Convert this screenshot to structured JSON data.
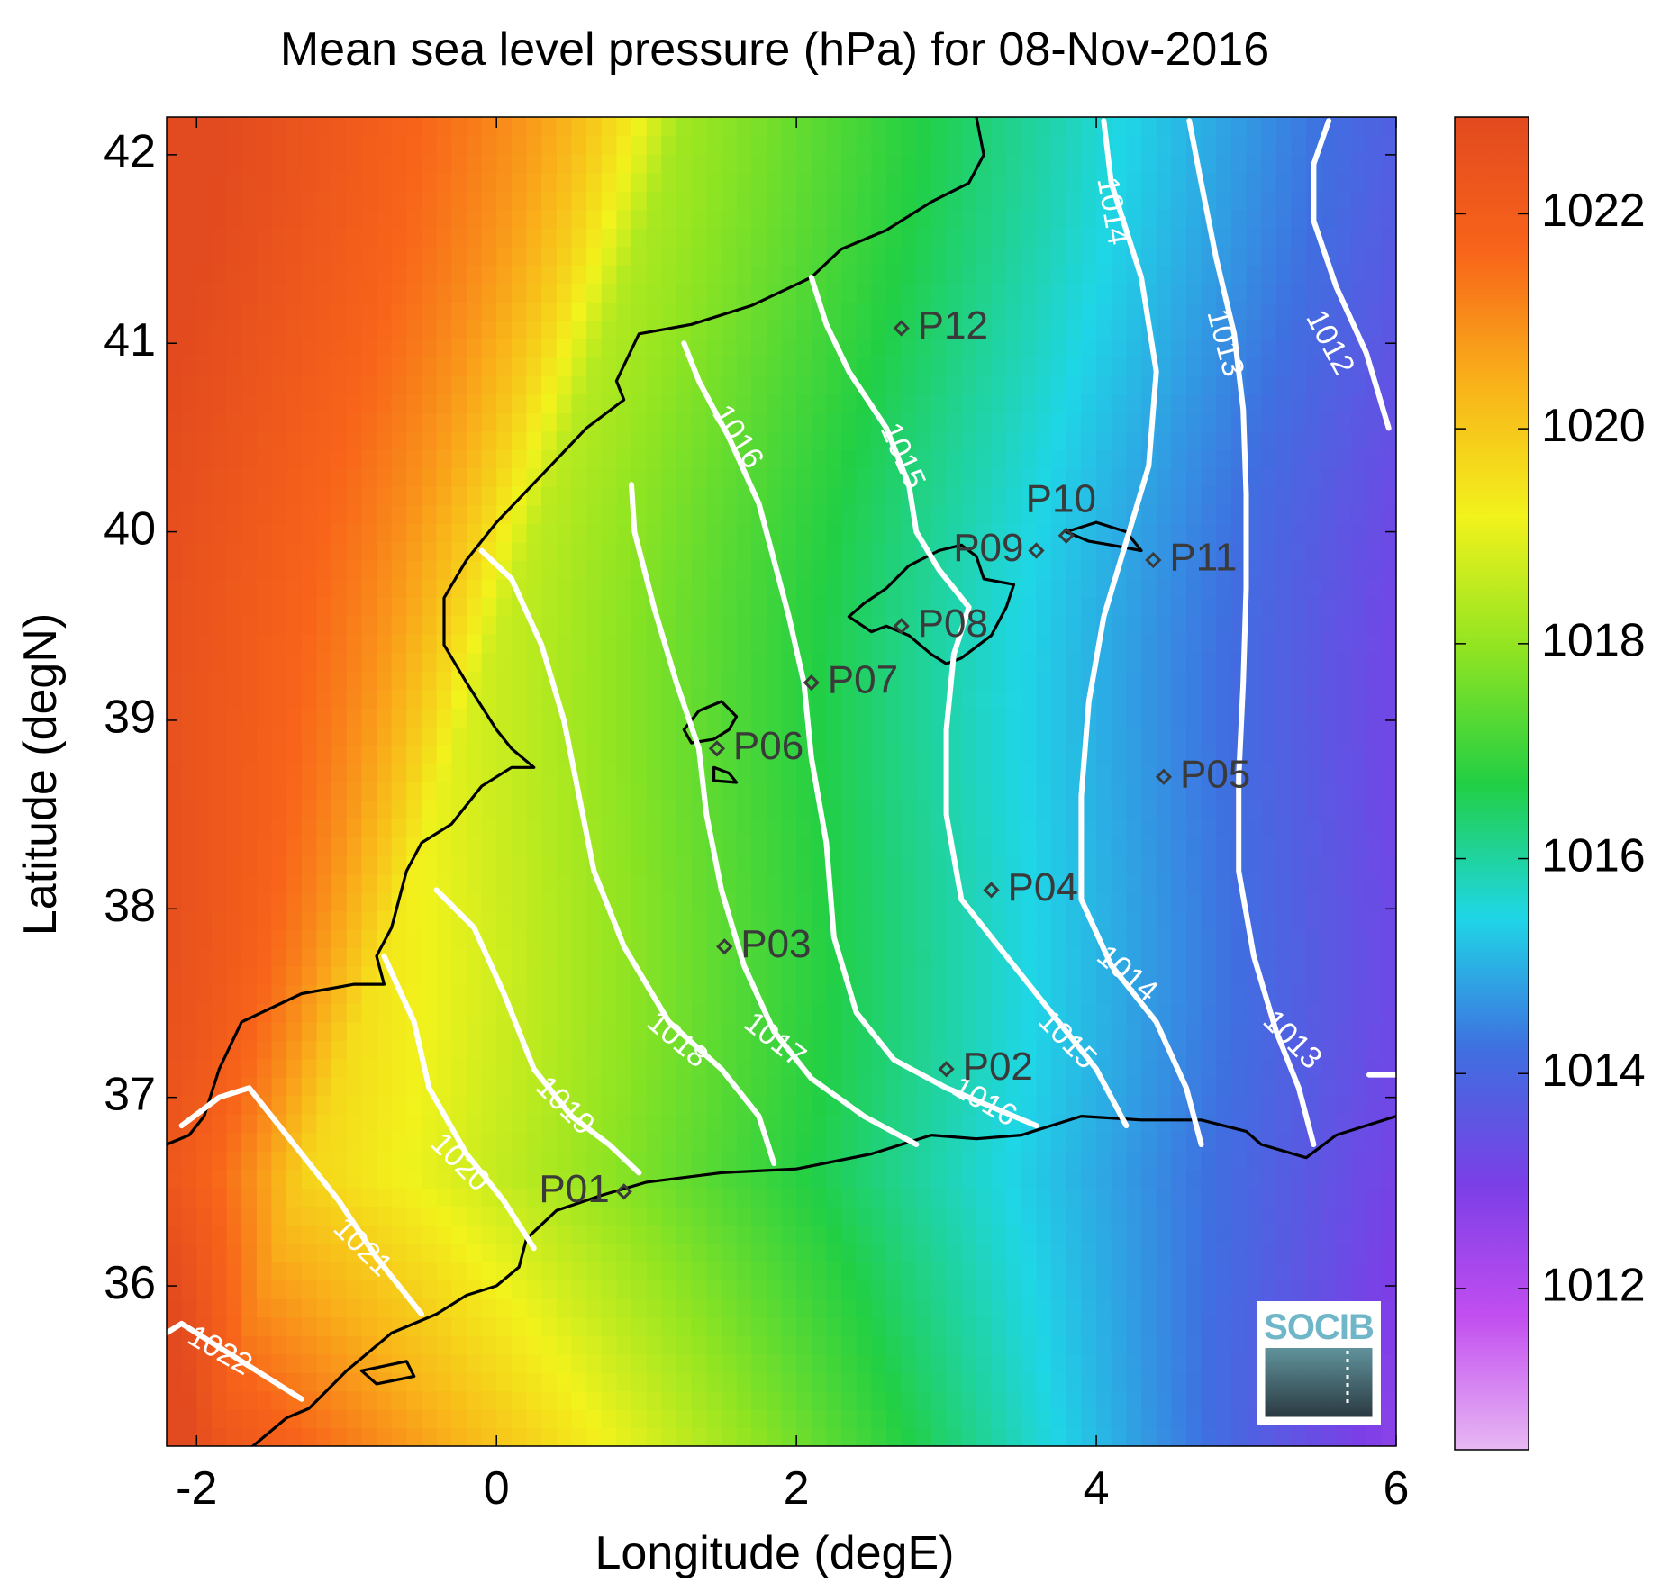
{
  "chart_data": {
    "type": "heatmap",
    "title": "Mean sea level pressure (hPa) for 08-Nov-2016",
    "xlabel": "Longitude (degE)",
    "ylabel": "Latitude (degN)",
    "xlim": [
      -2.2,
      6.0
    ],
    "ylim": [
      35.15,
      42.2
    ],
    "xticks": [
      -2,
      0,
      2,
      4,
      6
    ],
    "yticks": [
      36,
      37,
      38,
      39,
      40,
      41,
      42
    ],
    "colorbar": {
      "range": [
        1010.5,
        1022.9
      ],
      "ticks": [
        1012,
        1014,
        1016,
        1018,
        1020,
        1022
      ],
      "colors": [
        "#e8b8f3",
        "#c24ef0",
        "#7a3fe6",
        "#3f6fe0",
        "#1fd6e6",
        "#22cf44",
        "#8fe422",
        "#f2f21c",
        "#f9b21a",
        "#f8641a",
        "#e24a1f"
      ]
    },
    "contours": [
      {
        "level": "1012",
        "points": [
          [
            5.95,
            40.55
          ],
          [
            5.8,
            40.95
          ],
          [
            5.6,
            41.3
          ],
          [
            5.45,
            41.65
          ],
          [
            5.45,
            41.95
          ],
          [
            5.55,
            42.18
          ]
        ]
      },
      {
        "level": "1013",
        "points": [
          [
            5.45,
            36.75
          ],
          [
            5.35,
            37.05
          ],
          [
            5.2,
            37.35
          ],
          [
            5.05,
            37.75
          ],
          [
            4.95,
            38.2
          ],
          [
            4.95,
            38.7
          ],
          [
            4.98,
            39.2
          ],
          [
            5.0,
            39.7
          ],
          [
            5.0,
            40.2
          ],
          [
            4.98,
            40.65
          ],
          [
            4.92,
            41.05
          ],
          [
            4.8,
            41.45
          ],
          [
            4.7,
            41.85
          ],
          [
            4.62,
            42.18
          ]
        ]
      },
      {
        "level": "1013",
        "points": [
          [
            5.82,
            37.12
          ],
          [
            6.0,
            37.12
          ]
        ]
      },
      {
        "level": "1014",
        "points": [
          [
            4.7,
            36.75
          ],
          [
            4.6,
            37.05
          ],
          [
            4.4,
            37.4
          ],
          [
            4.1,
            37.7
          ],
          [
            3.9,
            38.05
          ],
          [
            3.9,
            38.6
          ],
          [
            3.95,
            39.1
          ],
          [
            4.05,
            39.55
          ],
          [
            4.2,
            39.95
          ],
          [
            4.35,
            40.35
          ],
          [
            4.4,
            40.85
          ],
          [
            4.3,
            41.35
          ],
          [
            4.1,
            41.85
          ],
          [
            4.05,
            42.18
          ]
        ]
      },
      {
        "level": "1015",
        "points": [
          [
            4.2,
            36.85
          ],
          [
            4.0,
            37.15
          ],
          [
            3.7,
            37.45
          ],
          [
            3.4,
            37.75
          ],
          [
            3.1,
            38.05
          ],
          [
            3.0,
            38.5
          ],
          [
            3.0,
            38.95
          ],
          [
            3.05,
            39.35
          ],
          [
            3.15,
            39.6
          ],
          [
            2.95,
            39.8
          ],
          [
            2.8,
            40.0
          ],
          [
            2.75,
            40.25
          ],
          [
            2.6,
            40.55
          ],
          [
            2.35,
            40.85
          ],
          [
            2.2,
            41.1
          ],
          [
            2.1,
            41.35
          ]
        ]
      },
      {
        "level": "1016",
        "points": [
          [
            3.6,
            36.85
          ],
          [
            3.3,
            36.95
          ],
          [
            3.0,
            37.05
          ],
          [
            2.65,
            37.2
          ],
          [
            2.4,
            37.45
          ],
          [
            2.25,
            37.85
          ],
          [
            2.2,
            38.35
          ],
          [
            2.1,
            38.8
          ],
          [
            2.05,
            39.2
          ],
          [
            1.95,
            39.55
          ],
          [
            1.85,
            39.85
          ],
          [
            1.75,
            40.15
          ],
          [
            1.55,
            40.5
          ],
          [
            1.35,
            40.8
          ],
          [
            1.25,
            41.0
          ]
        ]
      },
      {
        "level": "1017",
        "points": [
          [
            2.8,
            36.75
          ],
          [
            2.45,
            36.9
          ],
          [
            2.1,
            37.1
          ],
          [
            1.85,
            37.35
          ],
          [
            1.65,
            37.7
          ],
          [
            1.5,
            38.1
          ],
          [
            1.4,
            38.5
          ],
          [
            1.35,
            38.85
          ],
          [
            1.2,
            39.2
          ],
          [
            1.05,
            39.6
          ],
          [
            0.92,
            40.0
          ],
          [
            0.9,
            40.25
          ]
        ]
      },
      {
        "level": "1018",
        "points": [
          [
            1.85,
            36.65
          ],
          [
            1.75,
            36.9
          ],
          [
            1.5,
            37.15
          ],
          [
            1.15,
            37.4
          ],
          [
            0.85,
            37.8
          ],
          [
            0.65,
            38.2
          ],
          [
            0.55,
            38.6
          ],
          [
            0.45,
            39.0
          ],
          [
            0.3,
            39.4
          ],
          [
            0.1,
            39.75
          ],
          [
            -0.1,
            39.9
          ]
        ]
      },
      {
        "level": "1019",
        "points": [
          [
            0.95,
            36.6
          ],
          [
            0.75,
            36.75
          ],
          [
            0.5,
            36.9
          ],
          [
            0.25,
            37.15
          ],
          [
            0.05,
            37.55
          ],
          [
            -0.15,
            37.9
          ],
          [
            -0.4,
            38.1
          ]
        ]
      },
      {
        "level": "1020",
        "points": [
          [
            0.25,
            36.2
          ],
          [
            0.05,
            36.45
          ],
          [
            -0.2,
            36.7
          ],
          [
            -0.45,
            37.05
          ],
          [
            -0.55,
            37.4
          ],
          [
            -0.75,
            37.75
          ]
        ]
      },
      {
        "level": "1021",
        "points": [
          [
            -0.5,
            35.85
          ],
          [
            -0.8,
            36.15
          ],
          [
            -1.05,
            36.45
          ],
          [
            -1.35,
            36.75
          ],
          [
            -1.65,
            37.05
          ],
          [
            -1.85,
            37.0
          ],
          [
            -2.1,
            36.85
          ]
        ]
      },
      {
        "level": "1022",
        "points": [
          [
            -1.3,
            35.4
          ],
          [
            -1.6,
            35.55
          ],
          [
            -1.9,
            35.7
          ],
          [
            -2.1,
            35.8
          ],
          [
            -2.2,
            35.75
          ]
        ]
      }
    ],
    "contour_labels": [
      {
        "text": "1012",
        "lon": 5.55,
        "lat": 41.0,
        "angle": 62
      },
      {
        "text": "1013",
        "lon": 4.85,
        "lat": 41.0,
        "angle": 75
      },
      {
        "text": "1014",
        "lon": 4.1,
        "lat": 41.7,
        "angle": 80
      },
      {
        "text": "1015",
        "lon": 2.7,
        "lat": 40.4,
        "angle": 66
      },
      {
        "text": "1016",
        "lon": 1.6,
        "lat": 40.5,
        "angle": 58
      },
      {
        "text": "1017",
        "lon": 1.85,
        "lat": 37.3,
        "angle": 38
      },
      {
        "text": "1018",
        "lon": 1.2,
        "lat": 37.3,
        "angle": 40
      },
      {
        "text": "1019",
        "lon": 0.45,
        "lat": 36.95,
        "angle": 45
      },
      {
        "text": "1020",
        "lon": -0.25,
        "lat": 36.65,
        "angle": 45
      },
      {
        "text": "1021",
        "lon": -0.9,
        "lat": 36.2,
        "angle": 45
      },
      {
        "text": "1022",
        "lon": -1.85,
        "lat": 35.65,
        "angle": 30
      },
      {
        "text": "1013",
        "lon": 5.3,
        "lat": 37.3,
        "angle": 45
      },
      {
        "text": "1014",
        "lon": 4.2,
        "lat": 37.65,
        "angle": 40
      },
      {
        "text": "1015",
        "lon": 3.8,
        "lat": 37.3,
        "angle": 45
      },
      {
        "text": "1016",
        "lon": 3.25,
        "lat": 36.97,
        "angle": 30
      }
    ],
    "stations": [
      {
        "name": "P01",
        "lon": 0.85,
        "lat": 36.5
      },
      {
        "name": "P02",
        "lon": 3.0,
        "lat": 37.15
      },
      {
        "name": "P03",
        "lon": 1.52,
        "lat": 37.8
      },
      {
        "name": "P04",
        "lon": 3.3,
        "lat": 38.1
      },
      {
        "name": "P05",
        "lon": 4.45,
        "lat": 38.7
      },
      {
        "name": "P06",
        "lon": 1.47,
        "lat": 38.85
      },
      {
        "name": "P07",
        "lon": 2.1,
        "lat": 39.2
      },
      {
        "name": "P08",
        "lon": 2.7,
        "lat": 39.5
      },
      {
        "name": "P09",
        "lon": 3.6,
        "lat": 39.9
      },
      {
        "name": "P10",
        "lon": 3.8,
        "lat": 39.98
      },
      {
        "name": "P11",
        "lon": 4.38,
        "lat": 39.85
      },
      {
        "name": "P12",
        "lon": 2.7,
        "lat": 41.08
      }
    ],
    "coastlines": [
      {
        "name": "iberia",
        "points": [
          [
            -2.2,
            36.75
          ],
          [
            -2.05,
            36.8
          ],
          [
            -1.95,
            36.9
          ],
          [
            -1.85,
            37.15
          ],
          [
            -1.7,
            37.4
          ],
          [
            -1.3,
            37.55
          ],
          [
            -0.95,
            37.6
          ],
          [
            -0.75,
            37.6
          ],
          [
            -0.8,
            37.75
          ],
          [
            -0.7,
            37.9
          ],
          [
            -0.6,
            38.2
          ],
          [
            -0.5,
            38.35
          ],
          [
            -0.3,
            38.45
          ],
          [
            -0.1,
            38.65
          ],
          [
            0.1,
            38.75
          ],
          [
            0.25,
            38.75
          ],
          [
            0.1,
            38.85
          ],
          [
            0.0,
            38.95
          ],
          [
            -0.2,
            39.2
          ],
          [
            -0.35,
            39.4
          ],
          [
            -0.35,
            39.65
          ],
          [
            -0.2,
            39.85
          ],
          [
            0.0,
            40.05
          ],
          [
            0.3,
            40.3
          ],
          [
            0.6,
            40.55
          ],
          [
            0.85,
            40.7
          ],
          [
            0.8,
            40.8
          ],
          [
            0.95,
            41.05
          ],
          [
            1.3,
            41.1
          ],
          [
            1.7,
            41.2
          ],
          [
            2.1,
            41.35
          ],
          [
            2.3,
            41.5
          ],
          [
            2.6,
            41.6
          ],
          [
            2.9,
            41.75
          ],
          [
            3.15,
            41.85
          ],
          [
            3.25,
            42.0
          ],
          [
            3.2,
            42.2
          ]
        ]
      },
      {
        "name": "africa",
        "points": [
          [
            -1.7,
            35.1
          ],
          [
            -1.4,
            35.3
          ],
          [
            -1.25,
            35.35
          ],
          [
            -1.0,
            35.55
          ],
          [
            -0.7,
            35.75
          ],
          [
            -0.4,
            35.85
          ],
          [
            -0.2,
            35.95
          ],
          [
            0.0,
            36.0
          ],
          [
            0.15,
            36.1
          ],
          [
            0.2,
            36.25
          ],
          [
            0.4,
            36.4
          ],
          [
            0.7,
            36.48
          ],
          [
            1.0,
            36.55
          ],
          [
            1.5,
            36.6
          ],
          [
            2.0,
            36.62
          ],
          [
            2.5,
            36.7
          ],
          [
            2.9,
            36.8
          ],
          [
            3.2,
            36.78
          ],
          [
            3.5,
            36.8
          ],
          [
            3.9,
            36.9
          ],
          [
            4.3,
            36.88
          ],
          [
            4.7,
            36.88
          ],
          [
            5.0,
            36.82
          ],
          [
            5.1,
            36.75
          ],
          [
            5.4,
            36.68
          ],
          [
            5.6,
            36.8
          ],
          [
            6.0,
            36.9
          ]
        ]
      },
      {
        "name": "mallorca",
        "points": [
          [
            2.35,
            39.55
          ],
          [
            2.45,
            39.62
          ],
          [
            2.6,
            39.7
          ],
          [
            2.75,
            39.82
          ],
          [
            2.95,
            39.9
          ],
          [
            3.1,
            39.93
          ],
          [
            3.2,
            39.87
          ],
          [
            3.25,
            39.75
          ],
          [
            3.45,
            39.72
          ],
          [
            3.4,
            39.6
          ],
          [
            3.3,
            39.45
          ],
          [
            3.1,
            39.33
          ],
          [
            3.0,
            39.3
          ],
          [
            2.9,
            39.35
          ],
          [
            2.75,
            39.45
          ],
          [
            2.6,
            39.5
          ],
          [
            2.5,
            39.47
          ],
          [
            2.35,
            39.55
          ]
        ]
      },
      {
        "name": "menorca",
        "points": [
          [
            3.8,
            40.0
          ],
          [
            4.0,
            40.05
          ],
          [
            4.2,
            40.0
          ],
          [
            4.3,
            39.9
          ],
          [
            4.1,
            39.93
          ],
          [
            3.95,
            39.95
          ],
          [
            3.8,
            40.0
          ]
        ]
      },
      {
        "name": "ibiza",
        "points": [
          [
            1.25,
            38.95
          ],
          [
            1.35,
            39.05
          ],
          [
            1.5,
            39.1
          ],
          [
            1.6,
            39.02
          ],
          [
            1.55,
            38.95
          ],
          [
            1.45,
            38.9
          ],
          [
            1.3,
            38.88
          ],
          [
            1.25,
            38.95
          ]
        ]
      },
      {
        "name": "formentera",
        "points": [
          [
            1.45,
            38.75
          ],
          [
            1.55,
            38.72
          ],
          [
            1.6,
            38.67
          ],
          [
            1.45,
            38.68
          ],
          [
            1.45,
            38.75
          ]
        ]
      },
      {
        "name": "alboran",
        "points": [
          [
            -0.9,
            35.55
          ],
          [
            -0.6,
            35.6
          ],
          [
            -0.55,
            35.52
          ],
          [
            -0.8,
            35.48
          ],
          [
            -0.9,
            35.55
          ]
        ]
      }
    ],
    "logo_text": "SOCIB"
  }
}
